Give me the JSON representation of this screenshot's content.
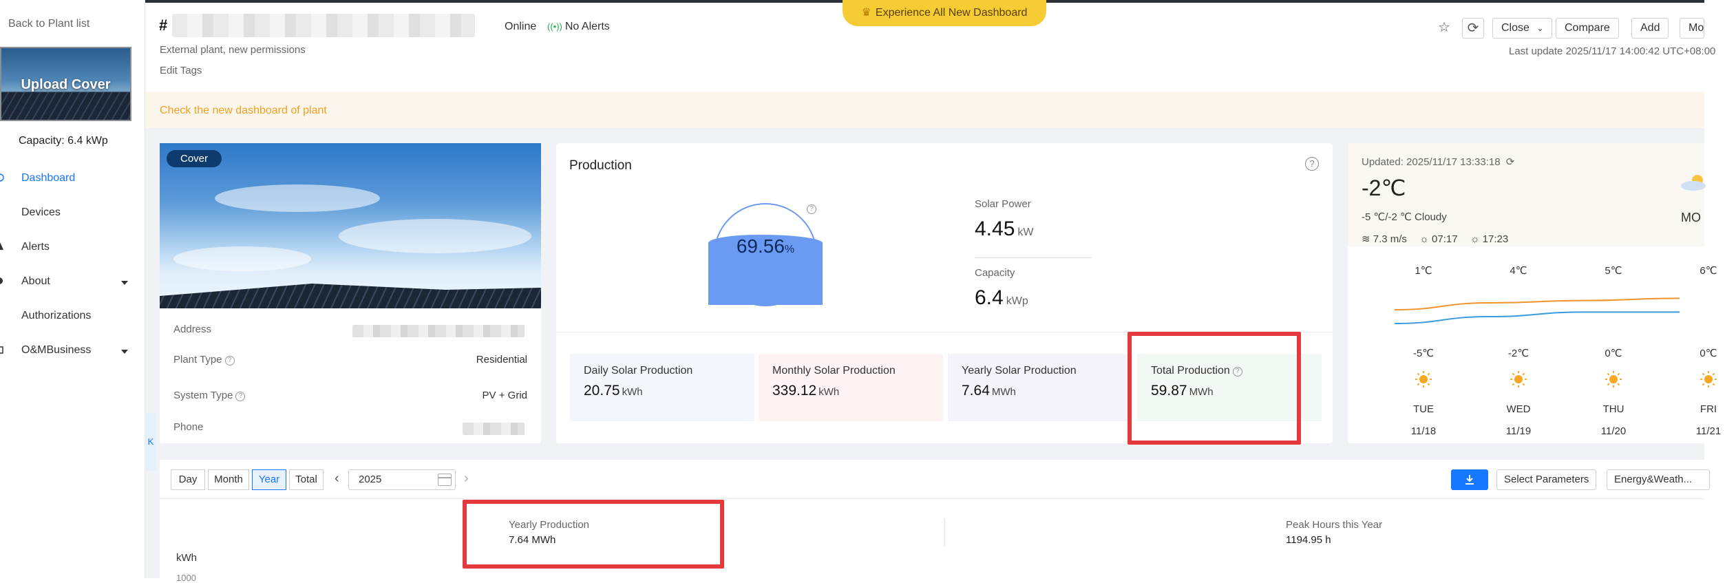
{
  "sidebar": {
    "back_label": "Back to Plant list",
    "cover_label": "Upload Cover",
    "capacity": "Capacity: 6.4 kWp",
    "items": [
      {
        "label": "Dashboard"
      },
      {
        "label": "Devices"
      },
      {
        "label": "Alerts"
      },
      {
        "label": "About"
      },
      {
        "label": "Authorizations"
      },
      {
        "label": "O&MBusiness"
      }
    ],
    "collapse_glyph": "K"
  },
  "banner": {
    "label": "Experience All New Dashboard"
  },
  "header": {
    "title_prefix": "#",
    "status_online": "Online",
    "status_alerts": "No Alerts",
    "sub_line": "External plant, new permissions",
    "edit_tags": "Edit Tags",
    "close_label": "Close",
    "compare_label": "Compare",
    "add_label": "Add",
    "more_label": "Mo",
    "last_update": "Last update 2025/11/17 14:00:42 UTC+08:00"
  },
  "notice": {
    "text": "Check the new dashboard of plant"
  },
  "plant": {
    "cover_tag": "Cover",
    "address_label": "Address",
    "plant_type_label": "Plant Type",
    "plant_type_value": "Residential",
    "system_type_label": "System Type",
    "system_type_value": "PV + Grid",
    "phone_label": "Phone"
  },
  "production": {
    "title": "Production",
    "gauge_value": "69.56",
    "gauge_unit": "%",
    "gauge_fraction": 0.6956,
    "solar_power_label": "Solar Power",
    "solar_power_value": "4.45",
    "solar_power_unit": "kW",
    "capacity_label": "Capacity",
    "capacity_value": "6.4",
    "capacity_unit": "kWp",
    "stats": [
      {
        "label": "Daily Solar Production",
        "value": "20.75",
        "unit": "kWh",
        "bg": "#f3f7fc"
      },
      {
        "label": "Monthly Solar Production",
        "value": "339.12",
        "unit": "kWh",
        "bg": "#fdf4f3"
      },
      {
        "label": "Yearly Solar Production",
        "value": "7.64",
        "unit": "MWh",
        "bg": "#f4f3fb"
      },
      {
        "label": "Total Production",
        "value": "59.87",
        "unit": "MWh",
        "bg": "#f2f8f3"
      }
    ]
  },
  "weather": {
    "updated": "Updated:  2025/11/17 13:33:18",
    "temp": "-2℃",
    "range": "-5 ℃/-2 ℃ Cloudy",
    "wind": "7.3 m/s",
    "sunrise": "07:17",
    "sunset": "17:23",
    "day_label": "MO",
    "forecast": [
      {
        "high": "1℃",
        "low": "-5℃",
        "day": "TUE",
        "date": "11/18"
      },
      {
        "high": "4℃",
        "low": "-2℃",
        "day": "WED",
        "date": "11/19"
      },
      {
        "high": "5℃",
        "low": "0℃",
        "day": "THU",
        "date": "11/20"
      },
      {
        "high": "6℃",
        "low": "0℃",
        "day": "FRI",
        "date": "11/21"
      }
    ],
    "colors": {
      "high_line": "#f0932b",
      "low_line": "#3a9ae0",
      "sun": "#f6a623"
    }
  },
  "toolbar": {
    "tabs": [
      "Day",
      "Month",
      "Year",
      "Total"
    ],
    "active_tab": "Year",
    "year_value": "2025",
    "select_params": "Select Parameters",
    "energy_weather": "Energy&Weath..."
  },
  "summary": {
    "yearly_label": "Yearly Production",
    "yearly_value": "7.64 MWh",
    "peak_label": "Peak Hours this Year",
    "peak_value": "1194.95 h",
    "y_unit": "kWh",
    "y_tick_top": "1000"
  },
  "colors": {
    "accent": "#1677ff",
    "highlight": "#e5393d",
    "notice": "#f0a020"
  }
}
